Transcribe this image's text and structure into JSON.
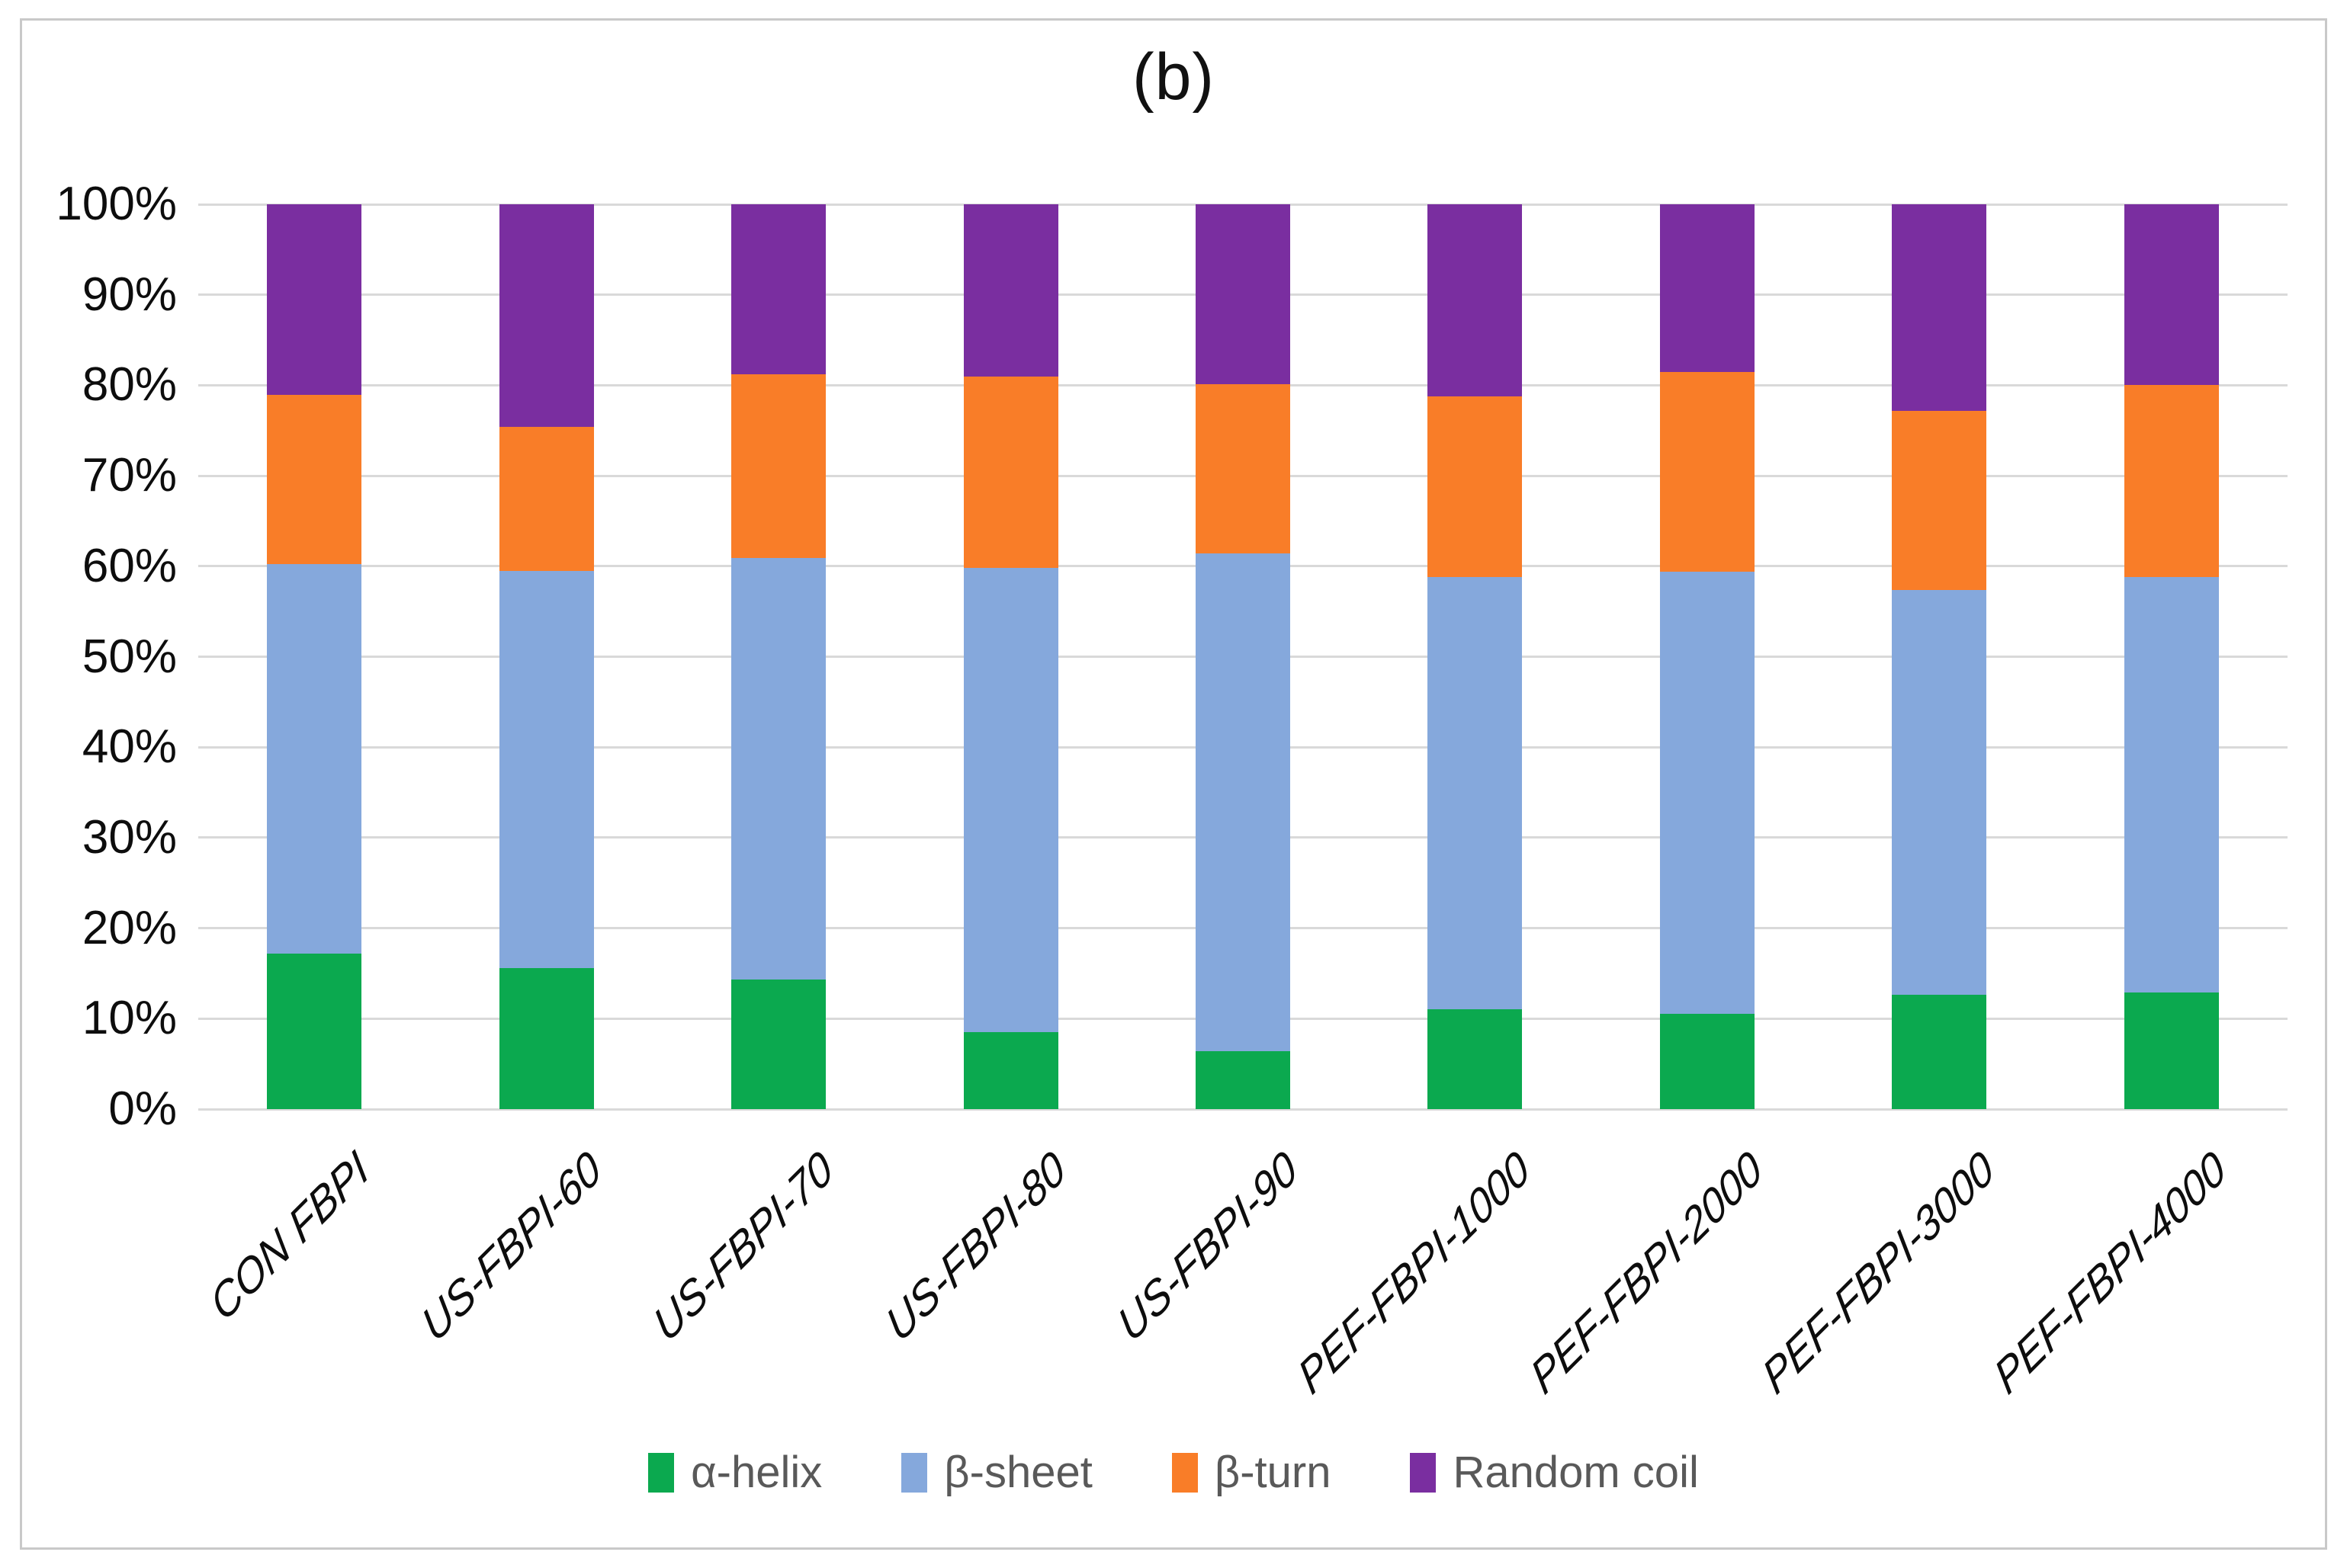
{
  "figure": {
    "panel_label": "(b)",
    "background": "#ffffff",
    "frame_border_color": "#c9c9c9"
  },
  "colors": {
    "gridline": "#d9d9d9",
    "axis_text": "#0d0d0d",
    "legend_text": "#595959"
  },
  "chart_data": {
    "type": "bar",
    "stacked": true,
    "percent_stacked": true,
    "title": "(b)",
    "xlabel": "",
    "ylabel": "",
    "ylim": [
      0,
      100
    ],
    "grid": true,
    "legend_position": "bottom",
    "y_ticks": [
      "0%",
      "10%",
      "20%",
      "30%",
      "40%",
      "50%",
      "60%",
      "70%",
      "80%",
      "90%",
      "100%"
    ],
    "categories": [
      "CON FBPI",
      "US-FBPI-60",
      "US-FBPI-70",
      "US-FBPI-80",
      "US-FBPI-90",
      "PEF-FBPI-1000",
      "PEF-FBPI-2000",
      "PEF-FBPI-3000",
      "PEF-FBPI-4000"
    ],
    "series": [
      {
        "name": "α-helix",
        "color": "#0ba94f",
        "values": [
          17.2,
          15.6,
          14.3,
          8.5,
          6.4,
          11.0,
          10.5,
          12.6,
          12.9
        ]
      },
      {
        "name": "β-sheet",
        "color": "#85a8dc",
        "values": [
          43.0,
          43.9,
          46.6,
          51.3,
          55.0,
          47.8,
          48.9,
          44.8,
          45.9
        ]
      },
      {
        "name": "β-turn",
        "color": "#f97d28",
        "values": [
          18.7,
          15.9,
          20.3,
          21.2,
          18.7,
          20.0,
          22.1,
          19.8,
          21.2
        ]
      },
      {
        "name": "Random coil",
        "color": "#7a2ea0",
        "values": [
          21.1,
          24.6,
          18.8,
          19.0,
          19.9,
          21.2,
          18.5,
          22.8,
          20.0
        ]
      }
    ]
  }
}
